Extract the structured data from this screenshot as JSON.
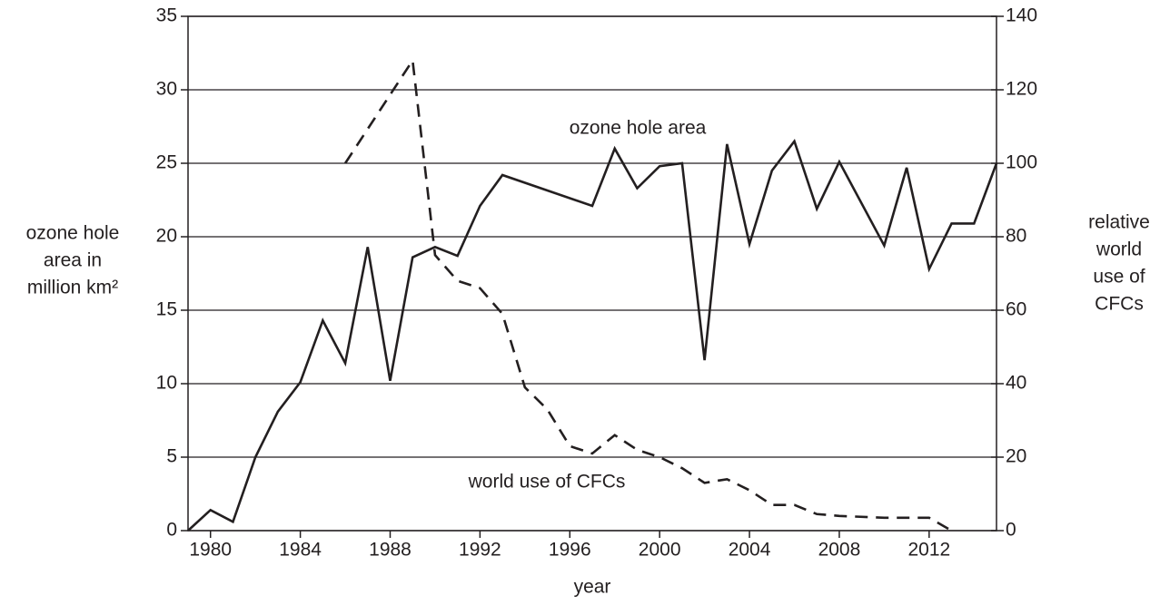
{
  "chart_data": {
    "type": "line",
    "xlabel": "year",
    "ylabel": [
      "ozone hole",
      "area in",
      "million km²"
    ],
    "y2label": [
      "relative",
      "world",
      "use of",
      "CFCs"
    ],
    "annotations": [
      "ozone hole area",
      "world use of CFCs"
    ],
    "xlim": [
      1979,
      2015
    ],
    "xticks": [
      1980,
      1984,
      1988,
      1992,
      1996,
      2000,
      2004,
      2008,
      2012
    ],
    "ylim": [
      0,
      35
    ],
    "yticks": [
      0,
      5,
      10,
      15,
      20,
      25,
      30,
      35
    ],
    "y2lim": [
      0,
      140
    ],
    "y2ticks": [
      0,
      20,
      40,
      60,
      80,
      100,
      120,
      140
    ],
    "grid": true,
    "series": [
      {
        "color": "#231f20",
        "dash": false,
        "axis": "y",
        "x": [
          1979,
          1980,
          1981,
          1982,
          1983,
          1984,
          1985,
          1986,
          1987,
          1988,
          1989,
          1990,
          1991,
          1992,
          1993,
          1997,
          1998,
          1999,
          2000,
          2001,
          2002,
          2003,
          2004,
          2005,
          2006,
          2007,
          2008,
          2010,
          2011,
          2012,
          2013,
          2014,
          2015
        ],
        "values": [
          0,
          1.4,
          0.6,
          5.0,
          8.1,
          10.1,
          14.3,
          11.4,
          19.3,
          10.2,
          18.6,
          19.3,
          18.7,
          22.1,
          24.2,
          22.1,
          26.0,
          23.3,
          24.8,
          25.0,
          11.6,
          26.3,
          19.5,
          24.5,
          26.5,
          21.9,
          25.1,
          19.4,
          24.7,
          17.8,
          20.9,
          20.9,
          25.0
        ]
      },
      {
        "color": "#231f20",
        "dash": true,
        "axis": "y2",
        "x": [
          1986,
          1989,
          1990,
          1991,
          1992,
          1993,
          1994,
          1995,
          1996,
          1997,
          1998,
          1999,
          2000,
          2001,
          2002,
          2003,
          2004,
          2005,
          2006,
          2007,
          2008,
          2010,
          2012,
          2013
        ],
        "values": [
          100,
          128,
          75,
          68,
          66,
          59,
          39,
          33,
          23,
          21,
          26,
          22,
          20,
          17,
          13,
          14,
          11,
          7,
          7,
          4.5,
          4,
          3.5,
          3.5,
          0
        ]
      }
    ]
  }
}
